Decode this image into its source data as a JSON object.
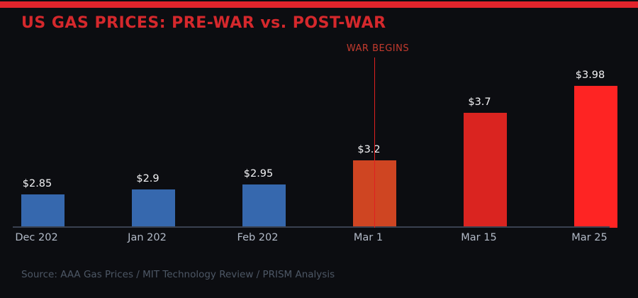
{
  "header": {
    "title": "US GAS PRICES: PRE-WAR vs. POST-WAR"
  },
  "footer": {
    "source": "Source: AAA Gas Prices / MIT Technology Review / PRISM Analysis"
  },
  "colors": {
    "background": "#0c0d11",
    "top_strip": "#e2242c",
    "title": "#d5282c",
    "annotation_text": "#c43b2e",
    "annotation_line": "#e02020",
    "axis_line": "#3a4150",
    "value_label": "#f2f2f4",
    "tick_label": "#b2bac7",
    "source_text": "#4d5765",
    "pre_war_bar": "#3668ae",
    "war_start_bar": "#cf4522",
    "post_war_bar": "#da2420",
    "latest_bar": "#fe2423"
  },
  "chart_data": {
    "type": "bar",
    "title": "US GAS PRICES: PRE-WAR vs. POST-WAR",
    "categories": [
      "Dec 202",
      "Jan 202",
      "Feb 202",
      "Mar 1",
      "Mar 15",
      "Mar 25"
    ],
    "values": [
      2.85,
      2.9,
      2.95,
      3.2,
      3.7,
      3.98
    ],
    "value_labels": [
      "$2.85",
      "$2.9",
      "$2.95",
      "$3.2",
      "$3.7",
      "$3.98"
    ],
    "bar_colors": [
      "#3668ae",
      "#3668ae",
      "#3668ae",
      "#cf4522",
      "#da2420",
      "#fe2423"
    ],
    "xlabel": "",
    "ylabel": "",
    "ylim": [
      2.5,
      4.25
    ],
    "grid": false,
    "legend": "none",
    "annotation": {
      "text": "WAR BEGINS",
      "category_index": 3
    }
  }
}
